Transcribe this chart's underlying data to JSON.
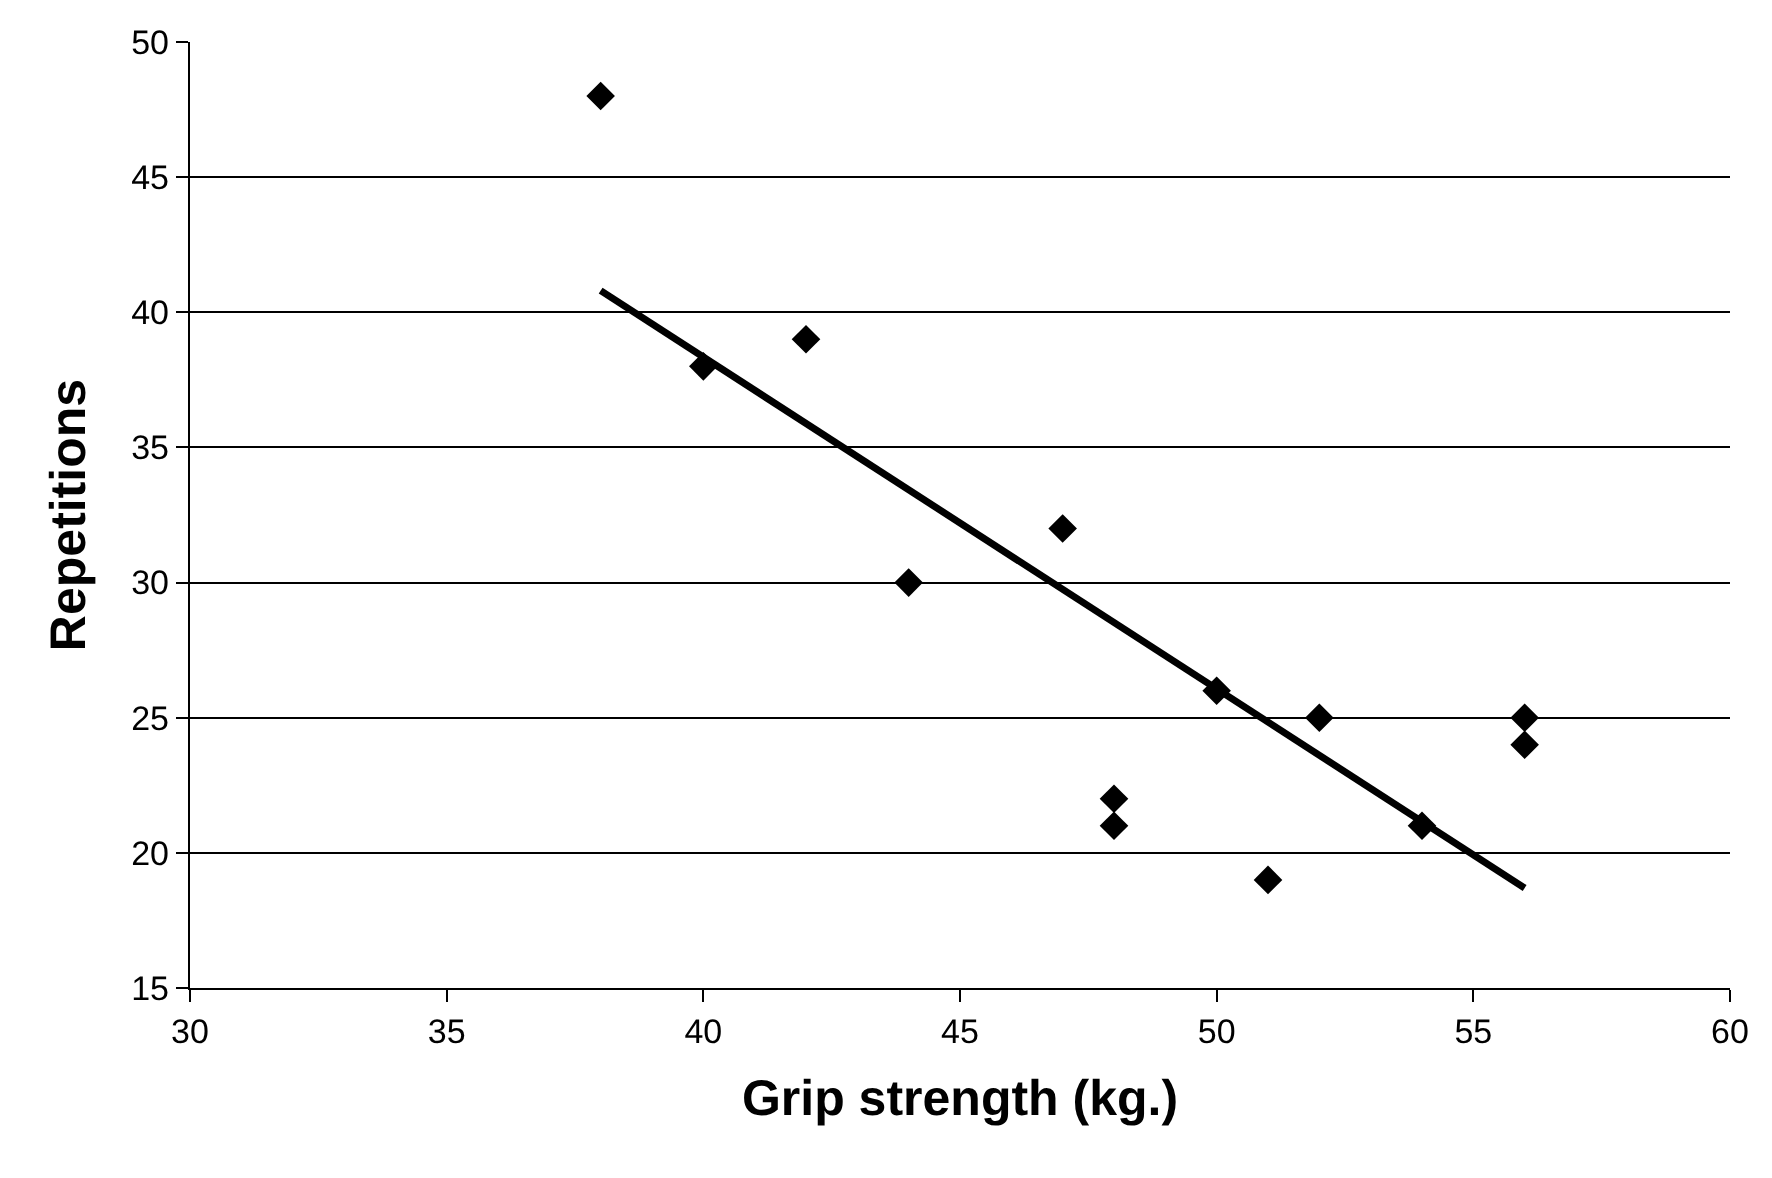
{
  "chart_data": {
    "type": "scatter",
    "xlabel": "Grip strength (kg.)",
    "ylabel": "Repetitions",
    "xlim": [
      30,
      60
    ],
    "xticks": [
      30,
      35,
      40,
      45,
      50,
      55,
      60
    ],
    "ylim": [
      15,
      50
    ],
    "yticks": [
      15,
      20,
      25,
      30,
      35,
      40,
      45,
      50
    ],
    "grid": "y",
    "series": [
      {
        "marker": "diamond",
        "color": "#000000",
        "x": [
          38,
          40,
          42,
          44,
          47,
          48,
          48,
          50,
          51,
          52,
          54,
          56,
          56
        ],
        "values": [
          48,
          38,
          39,
          30,
          32,
          22,
          21,
          26,
          19,
          25,
          21,
          25,
          24
        ]
      },
      {
        "type": "line",
        "color": "#000000",
        "x": [
          38,
          56
        ],
        "values": [
          40.8,
          18.7
        ],
        "line_style": "solid"
      }
    ]
  }
}
